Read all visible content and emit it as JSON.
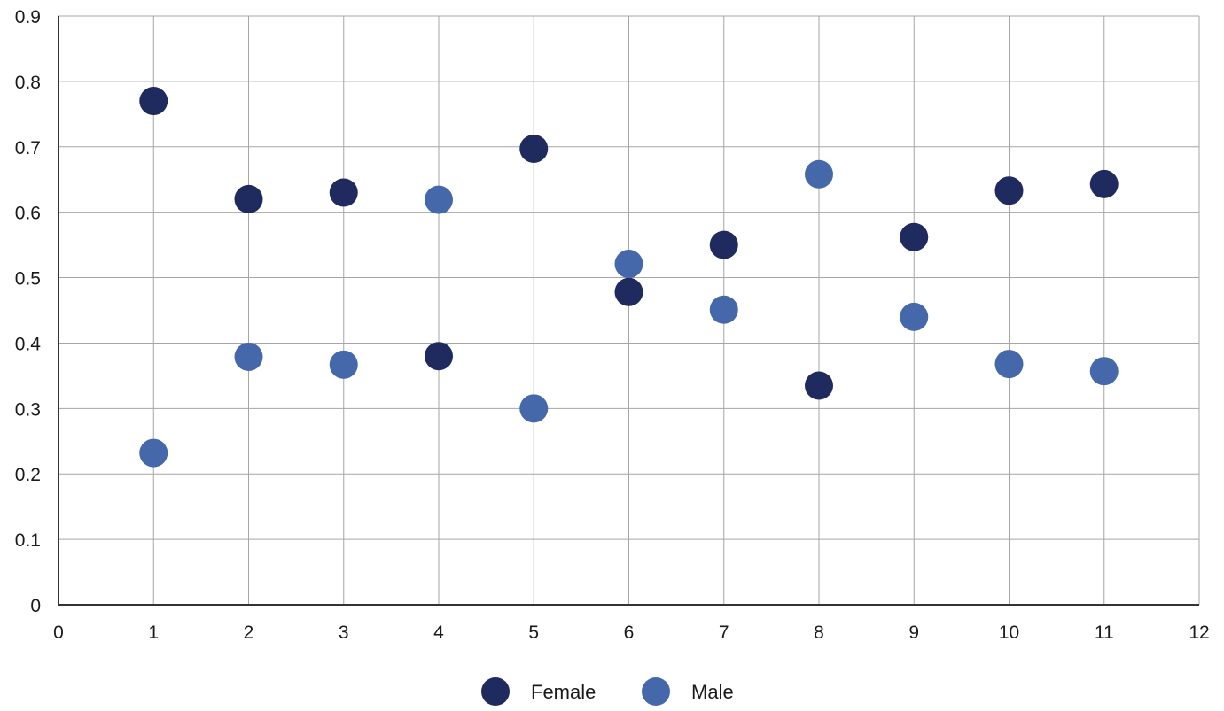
{
  "chart_data": {
    "type": "scatter",
    "title": "",
    "xlabel": "",
    "ylabel": "",
    "xlim": [
      0,
      12
    ],
    "ylim": [
      0,
      0.9
    ],
    "xticks": [
      0,
      1,
      2,
      3,
      4,
      5,
      6,
      7,
      8,
      9,
      10,
      11,
      12
    ],
    "yticks": [
      0,
      0.1,
      0.2,
      0.3,
      0.4,
      0.5,
      0.6,
      0.7,
      0.8,
      0.9
    ],
    "xtick_labels": [
      "0",
      "1",
      "2",
      "3",
      "4",
      "5",
      "6",
      "7",
      "8",
      "9",
      "10",
      "11",
      "12"
    ],
    "ytick_labels": [
      "0",
      "0.1",
      "0.2",
      "0.3",
      "0.4",
      "0.5",
      "0.6",
      "0.7",
      "0.8",
      "0.9"
    ],
    "grid": true,
    "legend_position": "bottom-center",
    "series": [
      {
        "name": "Female",
        "color": "#1f2a5e",
        "x": [
          1,
          2,
          3,
          4,
          5,
          6,
          7,
          8,
          9,
          10,
          11
        ],
        "y": [
          0.77,
          0.62,
          0.63,
          0.38,
          0.697,
          0.478,
          0.55,
          0.335,
          0.562,
          0.633,
          0.643
        ]
      },
      {
        "name": "Male",
        "color": "#4568ab",
        "x": [
          1,
          2,
          3,
          4,
          5,
          6,
          7,
          8,
          9,
          10,
          11
        ],
        "y": [
          0.232,
          0.379,
          0.367,
          0.619,
          0.3,
          0.521,
          0.451,
          0.658,
          0.44,
          0.368,
          0.357
        ]
      }
    ]
  }
}
